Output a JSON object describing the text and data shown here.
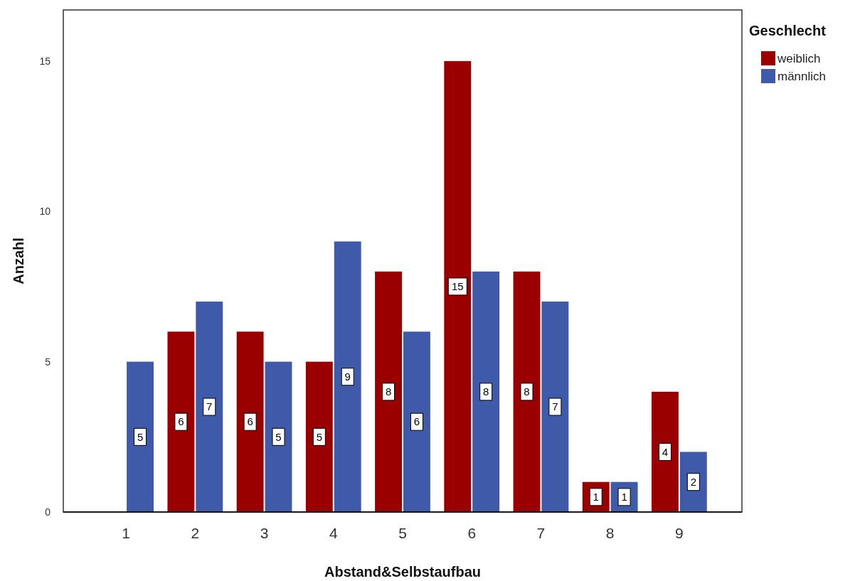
{
  "chart_data": {
    "type": "bar",
    "xlabel": "Abstand&Selbstaufbau",
    "ylabel": "Anzahl",
    "legend_title": "Geschlecht",
    "categories": [
      "1",
      "2",
      "3",
      "4",
      "5",
      "6",
      "7",
      "8",
      "9"
    ],
    "series": [
      {
        "name": "weiblich",
        "color": "#9b0000",
        "values": [
          null,
          6,
          6,
          5,
          8,
          15,
          8,
          1,
          4
        ]
      },
      {
        "name": "männlich",
        "color": "#3f5aa8",
        "values": [
          5,
          7,
          5,
          9,
          6,
          8,
          7,
          1,
          2
        ]
      }
    ],
    "ylim": [
      0,
      16.7
    ],
    "yticks": [
      0,
      5,
      10,
      15
    ],
    "data_labels": true,
    "legend": "top right"
  }
}
